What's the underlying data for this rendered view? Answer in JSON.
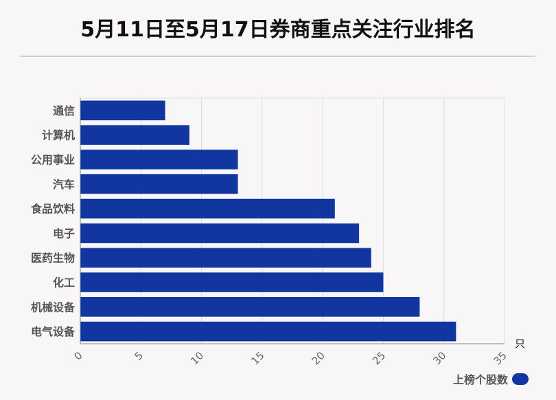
{
  "chart_data": {
    "type": "bar",
    "orientation": "horizontal",
    "title": "5月11日至5月17日券商重点关注行业排名",
    "categories": [
      "通信",
      "计算机",
      "公用事业",
      "汽车",
      "食品饮料",
      "电子",
      "医药生物",
      "化工",
      "机械设备",
      "电气设备"
    ],
    "series": [
      {
        "name": "上榜个股数",
        "values": [
          7,
          9,
          13,
          13,
          21,
          23,
          24,
          25,
          28,
          31
        ],
        "color": "#1136a0"
      }
    ],
    "xlim": [
      0,
      35
    ],
    "xticks": [
      0,
      5,
      10,
      15,
      20,
      25,
      30,
      35
    ],
    "xunit": "只",
    "grid": true,
    "legend": "bottom-right"
  }
}
